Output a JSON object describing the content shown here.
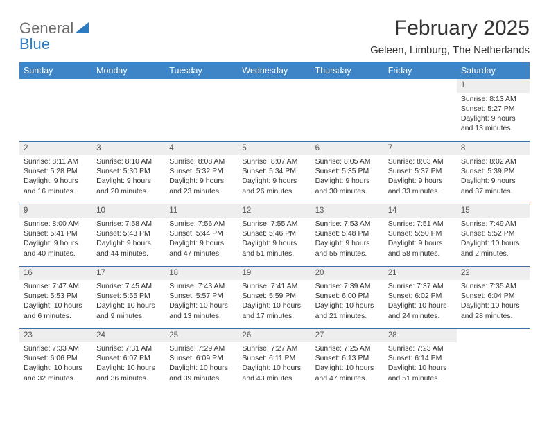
{
  "logo": {
    "text1": "General",
    "text2": "Blue"
  },
  "header": {
    "title": "February 2025",
    "location": "Geleen, Limburg, The Netherlands"
  },
  "colors": {
    "header_bg": "#3d85c6",
    "header_text": "#ffffff",
    "daynum_bg": "#eeeeee",
    "row_border": "#3d6fa8",
    "logo_gray": "#6b6b6b",
    "logo_blue": "#2d7bc0",
    "body_text": "#333333"
  },
  "weekdays": [
    "Sunday",
    "Monday",
    "Tuesday",
    "Wednesday",
    "Thursday",
    "Friday",
    "Saturday"
  ],
  "weeks": [
    [
      {
        "day": "",
        "sunrise": "",
        "sunset": "",
        "daylight": ""
      },
      {
        "day": "",
        "sunrise": "",
        "sunset": "",
        "daylight": ""
      },
      {
        "day": "",
        "sunrise": "",
        "sunset": "",
        "daylight": ""
      },
      {
        "day": "",
        "sunrise": "",
        "sunset": "",
        "daylight": ""
      },
      {
        "day": "",
        "sunrise": "",
        "sunset": "",
        "daylight": ""
      },
      {
        "day": "",
        "sunrise": "",
        "sunset": "",
        "daylight": ""
      },
      {
        "day": "1",
        "sunrise": "Sunrise: 8:13 AM",
        "sunset": "Sunset: 5:27 PM",
        "daylight": "Daylight: 9 hours and 13 minutes."
      }
    ],
    [
      {
        "day": "2",
        "sunrise": "Sunrise: 8:11 AM",
        "sunset": "Sunset: 5:28 PM",
        "daylight": "Daylight: 9 hours and 16 minutes."
      },
      {
        "day": "3",
        "sunrise": "Sunrise: 8:10 AM",
        "sunset": "Sunset: 5:30 PM",
        "daylight": "Daylight: 9 hours and 20 minutes."
      },
      {
        "day": "4",
        "sunrise": "Sunrise: 8:08 AM",
        "sunset": "Sunset: 5:32 PM",
        "daylight": "Daylight: 9 hours and 23 minutes."
      },
      {
        "day": "5",
        "sunrise": "Sunrise: 8:07 AM",
        "sunset": "Sunset: 5:34 PM",
        "daylight": "Daylight: 9 hours and 26 minutes."
      },
      {
        "day": "6",
        "sunrise": "Sunrise: 8:05 AM",
        "sunset": "Sunset: 5:35 PM",
        "daylight": "Daylight: 9 hours and 30 minutes."
      },
      {
        "day": "7",
        "sunrise": "Sunrise: 8:03 AM",
        "sunset": "Sunset: 5:37 PM",
        "daylight": "Daylight: 9 hours and 33 minutes."
      },
      {
        "day": "8",
        "sunrise": "Sunrise: 8:02 AM",
        "sunset": "Sunset: 5:39 PM",
        "daylight": "Daylight: 9 hours and 37 minutes."
      }
    ],
    [
      {
        "day": "9",
        "sunrise": "Sunrise: 8:00 AM",
        "sunset": "Sunset: 5:41 PM",
        "daylight": "Daylight: 9 hours and 40 minutes."
      },
      {
        "day": "10",
        "sunrise": "Sunrise: 7:58 AM",
        "sunset": "Sunset: 5:43 PM",
        "daylight": "Daylight: 9 hours and 44 minutes."
      },
      {
        "day": "11",
        "sunrise": "Sunrise: 7:56 AM",
        "sunset": "Sunset: 5:44 PM",
        "daylight": "Daylight: 9 hours and 47 minutes."
      },
      {
        "day": "12",
        "sunrise": "Sunrise: 7:55 AM",
        "sunset": "Sunset: 5:46 PM",
        "daylight": "Daylight: 9 hours and 51 minutes."
      },
      {
        "day": "13",
        "sunrise": "Sunrise: 7:53 AM",
        "sunset": "Sunset: 5:48 PM",
        "daylight": "Daylight: 9 hours and 55 minutes."
      },
      {
        "day": "14",
        "sunrise": "Sunrise: 7:51 AM",
        "sunset": "Sunset: 5:50 PM",
        "daylight": "Daylight: 9 hours and 58 minutes."
      },
      {
        "day": "15",
        "sunrise": "Sunrise: 7:49 AM",
        "sunset": "Sunset: 5:52 PM",
        "daylight": "Daylight: 10 hours and 2 minutes."
      }
    ],
    [
      {
        "day": "16",
        "sunrise": "Sunrise: 7:47 AM",
        "sunset": "Sunset: 5:53 PM",
        "daylight": "Daylight: 10 hours and 6 minutes."
      },
      {
        "day": "17",
        "sunrise": "Sunrise: 7:45 AM",
        "sunset": "Sunset: 5:55 PM",
        "daylight": "Daylight: 10 hours and 9 minutes."
      },
      {
        "day": "18",
        "sunrise": "Sunrise: 7:43 AM",
        "sunset": "Sunset: 5:57 PM",
        "daylight": "Daylight: 10 hours and 13 minutes."
      },
      {
        "day": "19",
        "sunrise": "Sunrise: 7:41 AM",
        "sunset": "Sunset: 5:59 PM",
        "daylight": "Daylight: 10 hours and 17 minutes."
      },
      {
        "day": "20",
        "sunrise": "Sunrise: 7:39 AM",
        "sunset": "Sunset: 6:00 PM",
        "daylight": "Daylight: 10 hours and 21 minutes."
      },
      {
        "day": "21",
        "sunrise": "Sunrise: 7:37 AM",
        "sunset": "Sunset: 6:02 PM",
        "daylight": "Daylight: 10 hours and 24 minutes."
      },
      {
        "day": "22",
        "sunrise": "Sunrise: 7:35 AM",
        "sunset": "Sunset: 6:04 PM",
        "daylight": "Daylight: 10 hours and 28 minutes."
      }
    ],
    [
      {
        "day": "23",
        "sunrise": "Sunrise: 7:33 AM",
        "sunset": "Sunset: 6:06 PM",
        "daylight": "Daylight: 10 hours and 32 minutes."
      },
      {
        "day": "24",
        "sunrise": "Sunrise: 7:31 AM",
        "sunset": "Sunset: 6:07 PM",
        "daylight": "Daylight: 10 hours and 36 minutes."
      },
      {
        "day": "25",
        "sunrise": "Sunrise: 7:29 AM",
        "sunset": "Sunset: 6:09 PM",
        "daylight": "Daylight: 10 hours and 39 minutes."
      },
      {
        "day": "26",
        "sunrise": "Sunrise: 7:27 AM",
        "sunset": "Sunset: 6:11 PM",
        "daylight": "Daylight: 10 hours and 43 minutes."
      },
      {
        "day": "27",
        "sunrise": "Sunrise: 7:25 AM",
        "sunset": "Sunset: 6:13 PM",
        "daylight": "Daylight: 10 hours and 47 minutes."
      },
      {
        "day": "28",
        "sunrise": "Sunrise: 7:23 AM",
        "sunset": "Sunset: 6:14 PM",
        "daylight": "Daylight: 10 hours and 51 minutes."
      },
      {
        "day": "",
        "sunrise": "",
        "sunset": "",
        "daylight": ""
      }
    ]
  ]
}
